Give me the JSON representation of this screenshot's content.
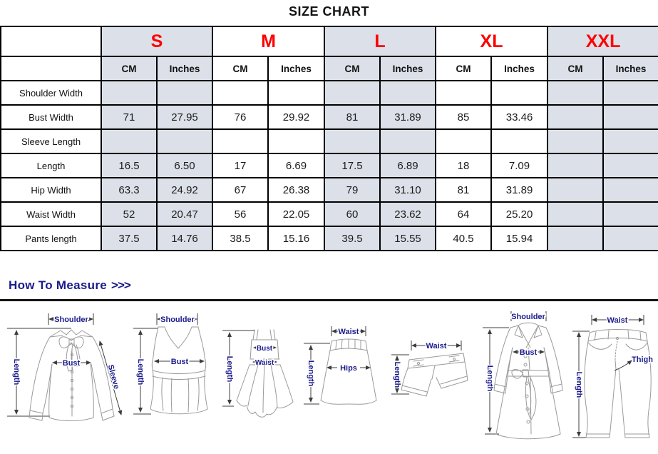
{
  "page_title": "SIZE CHART",
  "colors": {
    "accent_red": "#fe0000",
    "navy_label": "#1b1b8c",
    "cell_shade": "#dce0e8",
    "table_border": "#000000",
    "sketch_line": "#9a9a9a"
  },
  "table": {
    "sizes": [
      {
        "label": "S",
        "shaded": true
      },
      {
        "label": "M",
        "shaded": false
      },
      {
        "label": "L",
        "shaded": true
      },
      {
        "label": "XL",
        "shaded": false
      },
      {
        "label": "XXL",
        "shaded": true
      }
    ],
    "unit_headers": [
      "CM",
      "Inches"
    ],
    "rows": [
      {
        "label": "Shoulder Width",
        "values": [
          "",
          "",
          "",
          "",
          "",
          "",
          "",
          "",
          "",
          ""
        ]
      },
      {
        "label": "Bust Width",
        "values": [
          "71",
          "27.95",
          "76",
          "29.92",
          "81",
          "31.89",
          "85",
          "33.46",
          "",
          ""
        ]
      },
      {
        "label": "Sleeve Length",
        "values": [
          "",
          "",
          "",
          "",
          "",
          "",
          "",
          "",
          "",
          ""
        ]
      },
      {
        "label": "Length",
        "values": [
          "16.5",
          "6.50",
          "17",
          "6.69",
          "17.5",
          "6.89",
          "18",
          "7.09",
          "",
          ""
        ]
      },
      {
        "label": "Hip Width",
        "values": [
          "63.3",
          "24.92",
          "67",
          "26.38",
          "79",
          "31.10",
          "81",
          "31.89",
          "",
          ""
        ]
      },
      {
        "label": "Waist Width",
        "values": [
          "52",
          "20.47",
          "56",
          "22.05",
          "60",
          "23.62",
          "64",
          "25.20",
          "",
          ""
        ]
      },
      {
        "label": "Pants length",
        "values": [
          "37.5",
          "14.76",
          "38.5",
          "15.16",
          "39.5",
          "15.55",
          "40.5",
          "15.94",
          "",
          ""
        ]
      }
    ]
  },
  "measure": {
    "heading": "How To Measure",
    "arrows": ">>>",
    "figures": [
      {
        "name": "long-sleeve-blouse",
        "labels": {
          "shoulder": "Shoulder",
          "length": "Length",
          "bust": "Bust",
          "sleeve": "Sleeve"
        }
      },
      {
        "name": "tank-top",
        "labels": {
          "shoulder": "Shoulder",
          "length": "Length",
          "bust": "Bust"
        }
      },
      {
        "name": "cami-dress",
        "labels": {
          "length": "Length",
          "bust": "Bust",
          "waist": "Waist"
        }
      },
      {
        "name": "a-line-skirt",
        "labels": {
          "waist": "Waist",
          "length": "Length",
          "hips": "Hips"
        }
      },
      {
        "name": "shorts",
        "labels": {
          "waist": "Waist",
          "length": "Length"
        }
      },
      {
        "name": "trench-coat",
        "labels": {
          "shoulder": "Shoulder",
          "length": "Length",
          "bust": "Bust"
        }
      },
      {
        "name": "pants",
        "labels": {
          "waist": "Waist",
          "length": "Length",
          "thigh": "Thigh"
        }
      }
    ]
  }
}
